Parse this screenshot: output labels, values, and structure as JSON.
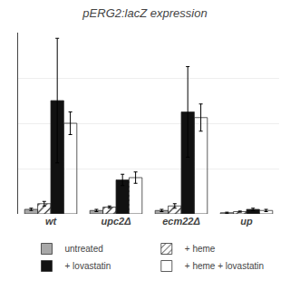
{
  "chart_data": {
    "type": "bar",
    "title": "pERG2:lacZ expression",
    "categories": [
      "wt",
      "upc2Δ",
      "ecm22Δ",
      "up"
    ],
    "series": [
      {
        "name": "untreated",
        "color": "#a8a8a8",
        "values": [
          4,
          3,
          3,
          1
        ],
        "errors": [
          1,
          1,
          1,
          0.5
        ]
      },
      {
        "name": "+ heme",
        "color": "#d0d0d0",
        "values": [
          9,
          6,
          7,
          2
        ],
        "errors": [
          2,
          1,
          2,
          0.5
        ]
      },
      {
        "name": "+ lovastatin",
        "color": "#111111",
        "values": [
          100,
          30,
          90,
          4
        ],
        "errors": [
          55,
          5,
          40,
          1
        ]
      },
      {
        "name": "+ heme + lovastatin",
        "color": "#111111",
        "values": [
          80,
          32,
          85,
          3
        ],
        "errors": [
          10,
          5,
          12,
          1
        ]
      }
    ],
    "ylim": [
      0,
      160
    ],
    "yticks": [
      0,
      40,
      80,
      120,
      160
    ],
    "grid": true,
    "legend": "bottom",
    "tick_labels": "x"
  }
}
